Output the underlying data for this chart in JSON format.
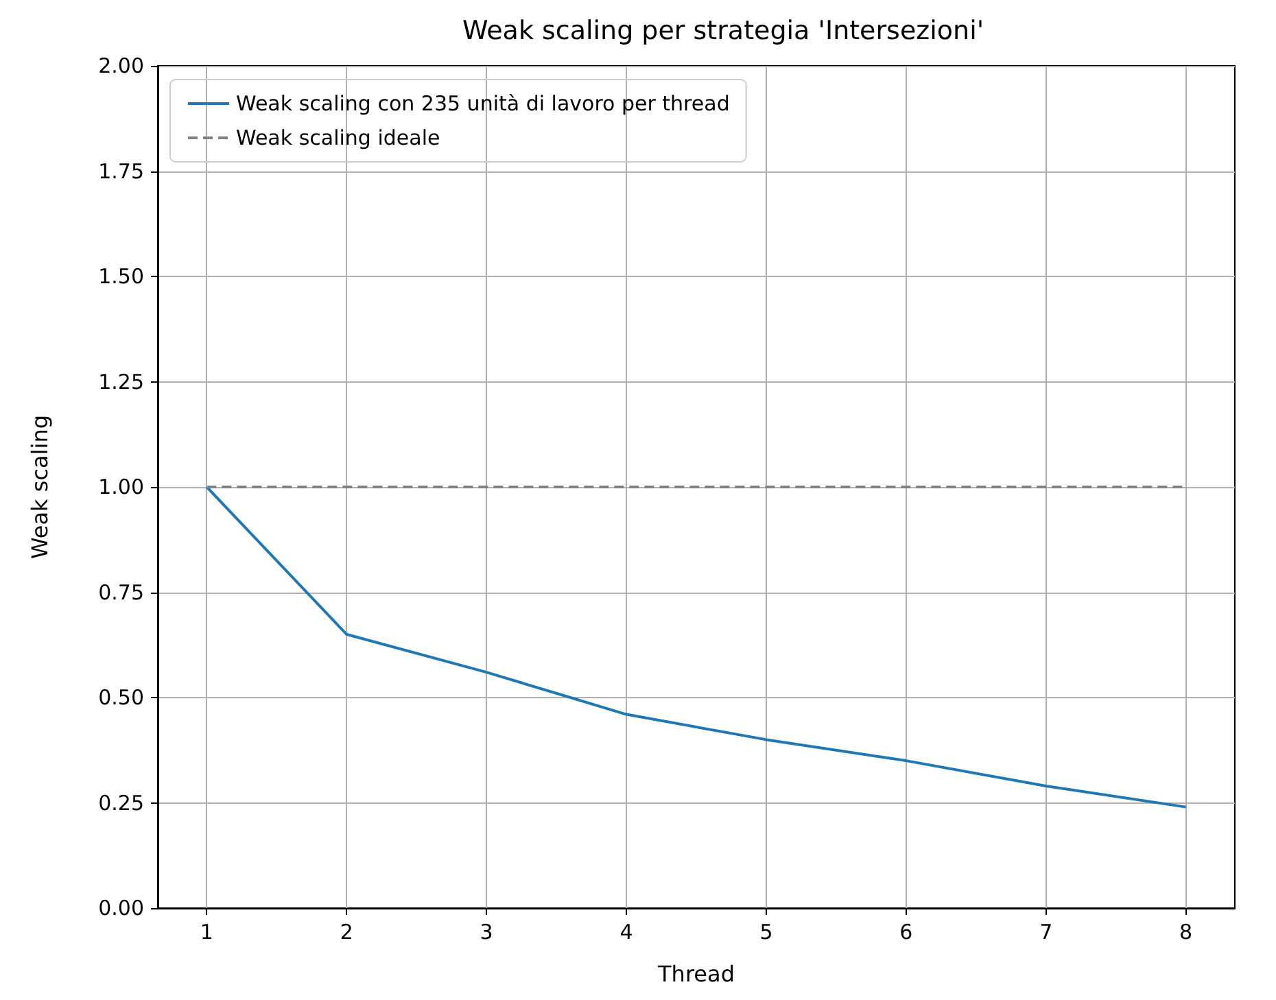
{
  "chart_data": {
    "type": "line",
    "title": "Weak scaling per strategia 'Intersezioni'",
    "xlabel": "Thread",
    "ylabel": "Weak scaling",
    "x": [
      1,
      2,
      3,
      4,
      5,
      6,
      7,
      8
    ],
    "series": [
      {
        "name": "Weak scaling con 235 unità di lavoro per thread",
        "color": "#1f77b4",
        "values": [
          1.0,
          0.65,
          0.56,
          0.46,
          0.4,
          0.35,
          0.29,
          0.24
        ]
      },
      {
        "name": "Weak scaling ideale",
        "color": "#808080",
        "line_style": "dashed",
        "values": [
          1,
          1,
          1,
          1,
          1,
          1,
          1,
          1
        ]
      }
    ],
    "xlim": [
      0.65,
      8.35
    ],
    "xticks": [
      1,
      2,
      3,
      4,
      5,
      6,
      7,
      8
    ],
    "ylim": [
      0,
      2
    ],
    "yticks": [
      {
        "value": 0,
        "label": "0.00"
      },
      {
        "value": 0.25,
        "label": "0.25"
      },
      {
        "value": 0.5,
        "label": "0.50"
      },
      {
        "value": 0.75,
        "label": "0.75"
      },
      {
        "value": 1,
        "label": "1.00"
      },
      {
        "value": 1.25,
        "label": "1.25"
      },
      {
        "value": 1.5,
        "label": "1.50"
      },
      {
        "value": 1.75,
        "label": "1.75"
      },
      {
        "value": 2,
        "label": "2.00"
      }
    ],
    "grid": true,
    "legend": "top left",
    "marker": "none",
    "line_style": "solid"
  }
}
